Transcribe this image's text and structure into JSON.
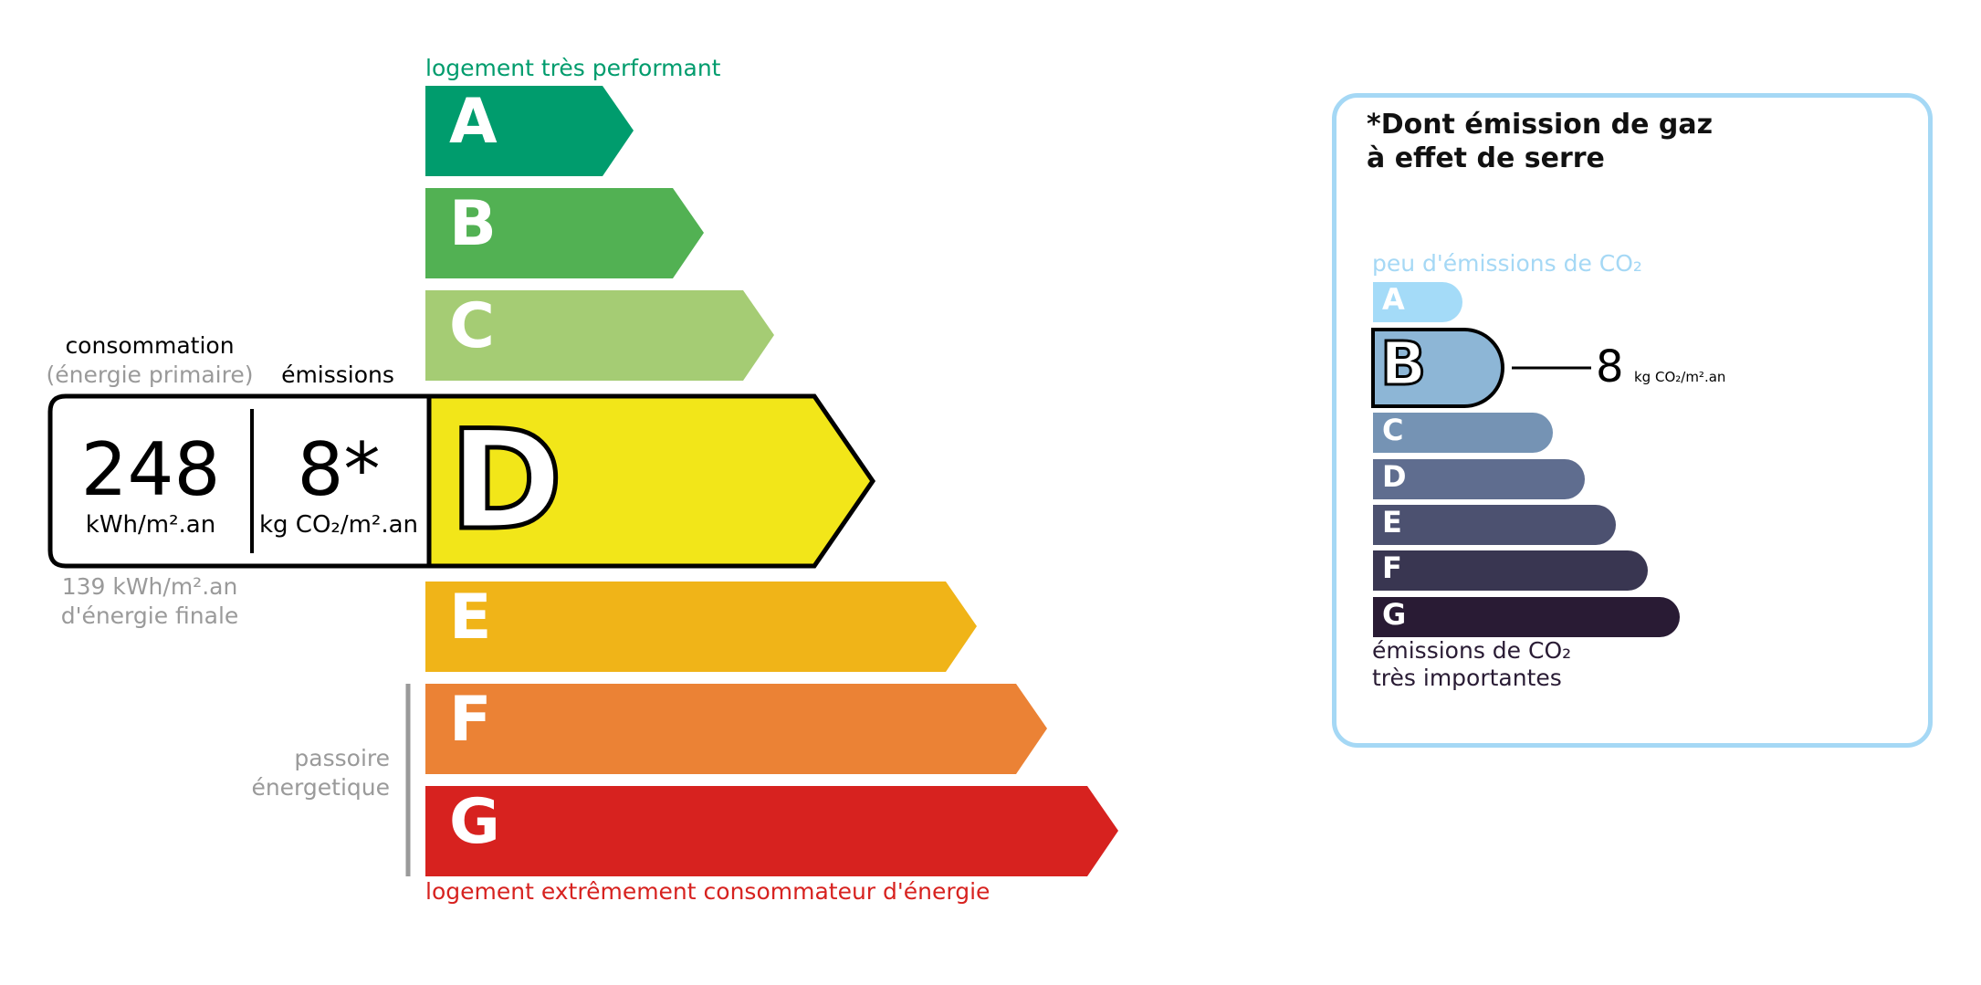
{
  "energy": {
    "top_label": "logement très performant",
    "bottom_label": "logement extrêmement consommateur d'énergie",
    "passoire_line1": "passoire",
    "passoire_line2": "énergetique",
    "classes": [
      {
        "letter": "A",
        "color": "#009c6d"
      },
      {
        "letter": "B",
        "color": "#52b153"
      },
      {
        "letter": "C",
        "color": "#a5cc74"
      },
      {
        "letter": "D",
        "color": "#f2e619"
      },
      {
        "letter": "E",
        "color": "#f0b418"
      },
      {
        "letter": "F",
        "color": "#eb8235"
      },
      {
        "letter": "G",
        "color": "#d7221f"
      }
    ],
    "current_class": "D",
    "consumption_label": "consommation",
    "consumption_sub": "(énergie primaire)",
    "emissions_label": "émissions",
    "consumption_value": "248",
    "consumption_unit": "kWh/m².an",
    "emissions_value": "8*",
    "emissions_unit": "kg CO₂/m².an",
    "final_value": "139 kWh/m².an",
    "final_label": "d'énergie finale",
    "top_color": "#009c6d",
    "bottom_color": "#d7221f"
  },
  "ghg": {
    "title_line1": "*Dont émission de gaz",
    "title_line2": "à effet de serre",
    "top_label": "peu d'émissions de CO₂",
    "bottom_line1": "émissions de CO₂",
    "bottom_line2": "très importantes",
    "classes": [
      {
        "letter": "A",
        "color": "#a4dbf8"
      },
      {
        "letter": "B",
        "color": "#8db6d6"
      },
      {
        "letter": "C",
        "color": "#7593b4"
      },
      {
        "letter": "D",
        "color": "#5f6d8f"
      },
      {
        "letter": "E",
        "color": "#4c5170"
      },
      {
        "letter": "F",
        "color": "#393651"
      },
      {
        "letter": "G",
        "color": "#291b34"
      }
    ],
    "current_class": "B",
    "value": "8",
    "unit": "kg CO₂/m².an",
    "border_color": "#a5d8f5"
  }
}
